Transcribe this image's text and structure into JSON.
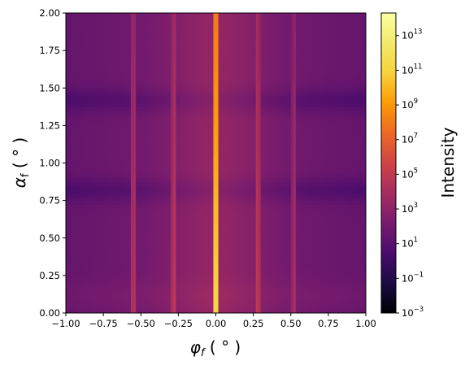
{
  "chart_data": {
    "type": "heatmap",
    "xlabel": {
      "symbol": "φ",
      "sub": "f",
      "unit": " ( ° )"
    },
    "ylabel": {
      "symbol": "α",
      "sub": "f",
      "unit": " ( ° )"
    },
    "xlim": [
      -1.0,
      1.0
    ],
    "ylim": [
      0.0,
      2.0
    ],
    "x_ticks": [
      "−1.00",
      "−0.75",
      "−0.50",
      "−0.25",
      "0.00",
      "0.25",
      "0.50",
      "0.75",
      "1.00"
    ],
    "y_ticks": [
      "0.00",
      "0.25",
      "0.50",
      "0.75",
      "1.00",
      "1.25",
      "1.50",
      "1.75",
      "2.00"
    ],
    "colorbar": {
      "label": "Intensity",
      "scale": "log",
      "colormap": "inferno",
      "range": [
        0.001,
        200000000000000
      ],
      "ticks": [
        {
          "value": 0.001,
          "base": "10",
          "exp": "−3"
        },
        {
          "value": 0.1,
          "base": "10",
          "exp": "−1"
        },
        {
          "value": 10,
          "base": "10",
          "exp": "1"
        },
        {
          "value": 1000,
          "base": "10",
          "exp": "3"
        },
        {
          "value": 100000,
          "base": "10",
          "exp": "5"
        },
        {
          "value": 10000000,
          "base": "10",
          "exp": "7"
        },
        {
          "value": 1000000000,
          "base": "10",
          "exp": "9"
        },
        {
          "value": 100000000000,
          "base": "10",
          "exp": "11"
        },
        {
          "value": 10000000000000,
          "base": "10",
          "exp": "13"
        }
      ]
    },
    "features": {
      "background_log10_intensity": 2.0,
      "center_rod": {
        "phi": 0.0,
        "log10_intensity": 12.5
      },
      "side_rods": [
        {
          "phi": -0.55,
          "log10_intensity": 7.0
        },
        {
          "phi": -0.28,
          "log10_intensity": 7.3
        },
        {
          "phi": 0.28,
          "log10_intensity": 7.3
        },
        {
          "phi": 0.52,
          "log10_intensity": 6.5
        }
      ],
      "dark_bands_alpha": [
        0.82,
        1.42
      ]
    }
  }
}
